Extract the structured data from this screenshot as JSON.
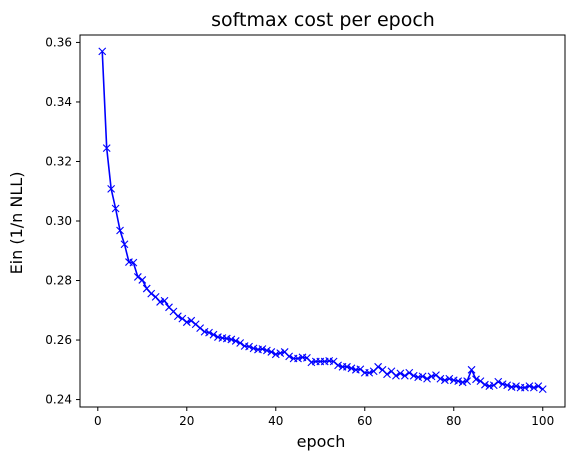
{
  "chart_data": {
    "type": "line",
    "title": "softmax cost per epoch",
    "xlabel": "epoch",
    "ylabel": "Ein (1/n NLL)",
    "xlim": [
      -4.0,
      105.0
    ],
    "ylim": [
      0.2375,
      0.3625
    ],
    "x_ticks": [
      0,
      20,
      40,
      60,
      80,
      100
    ],
    "y_ticks": [
      0.24,
      0.26,
      0.28,
      0.3,
      0.32,
      0.34,
      0.36
    ],
    "x_tick_labels": [
      "0",
      "20",
      "40",
      "60",
      "80",
      "100"
    ],
    "y_tick_labels": [
      "0.24",
      "0.26",
      "0.28",
      "0.30",
      "0.32",
      "0.34",
      "0.36"
    ],
    "grid": false,
    "marker": "x",
    "color": "#0000ff",
    "series": [
      {
        "x": [
          1,
          2,
          3,
          4,
          5,
          6,
          7,
          8,
          9,
          10,
          11,
          12,
          13,
          14,
          15,
          16,
          17,
          18,
          19,
          20,
          21,
          22,
          23,
          24,
          25,
          26,
          27,
          28,
          29,
          30,
          31,
          32,
          33,
          34,
          35,
          36,
          37,
          38,
          39,
          40,
          41,
          42,
          43,
          44,
          45,
          46,
          47,
          48,
          49,
          50,
          51,
          52,
          53,
          54,
          55,
          56,
          57,
          58,
          59,
          60,
          61,
          62,
          63,
          64,
          65,
          66,
          67,
          68,
          69,
          70,
          71,
          72,
          73,
          74,
          75,
          76,
          77,
          78,
          79,
          80,
          81,
          82,
          83,
          84,
          85,
          86,
          87,
          88,
          89,
          90,
          91,
          92,
          93,
          94,
          95,
          96,
          97,
          98,
          99,
          100
        ],
        "values": [
          0.357,
          0.3245,
          0.3108,
          0.3042,
          0.2968,
          0.2922,
          0.2862,
          0.286,
          0.2812,
          0.2802,
          0.2773,
          0.2756,
          0.2745,
          0.2728,
          0.2732,
          0.271,
          0.2696,
          0.268,
          0.2672,
          0.266,
          0.2665,
          0.2653,
          0.264,
          0.2628,
          0.2625,
          0.2618,
          0.261,
          0.2607,
          0.2605,
          0.2602,
          0.2597,
          0.259,
          0.258,
          0.2578,
          0.2572,
          0.2568,
          0.257,
          0.2565,
          0.256,
          0.2552,
          0.2556,
          0.256,
          0.2545,
          0.2538,
          0.2538,
          0.2542,
          0.254,
          0.2525,
          0.2528,
          0.2528,
          0.2528,
          0.253,
          0.2528,
          0.2515,
          0.251,
          0.251,
          0.2505,
          0.25,
          0.2502,
          0.249,
          0.249,
          0.2495,
          0.251,
          0.25,
          0.2485,
          0.2495,
          0.248,
          0.2488,
          0.248,
          0.249,
          0.248,
          0.2475,
          0.2478,
          0.247,
          0.2478,
          0.2482,
          0.247,
          0.2465,
          0.247,
          0.2465,
          0.2462,
          0.2458,
          0.2462,
          0.25,
          0.2468,
          0.2462,
          0.245,
          0.2445,
          0.2448,
          0.246,
          0.2452,
          0.2448,
          0.2442,
          0.2445,
          0.244,
          0.244,
          0.2445,
          0.244,
          0.2445,
          0.2435
        ]
      }
    ]
  }
}
